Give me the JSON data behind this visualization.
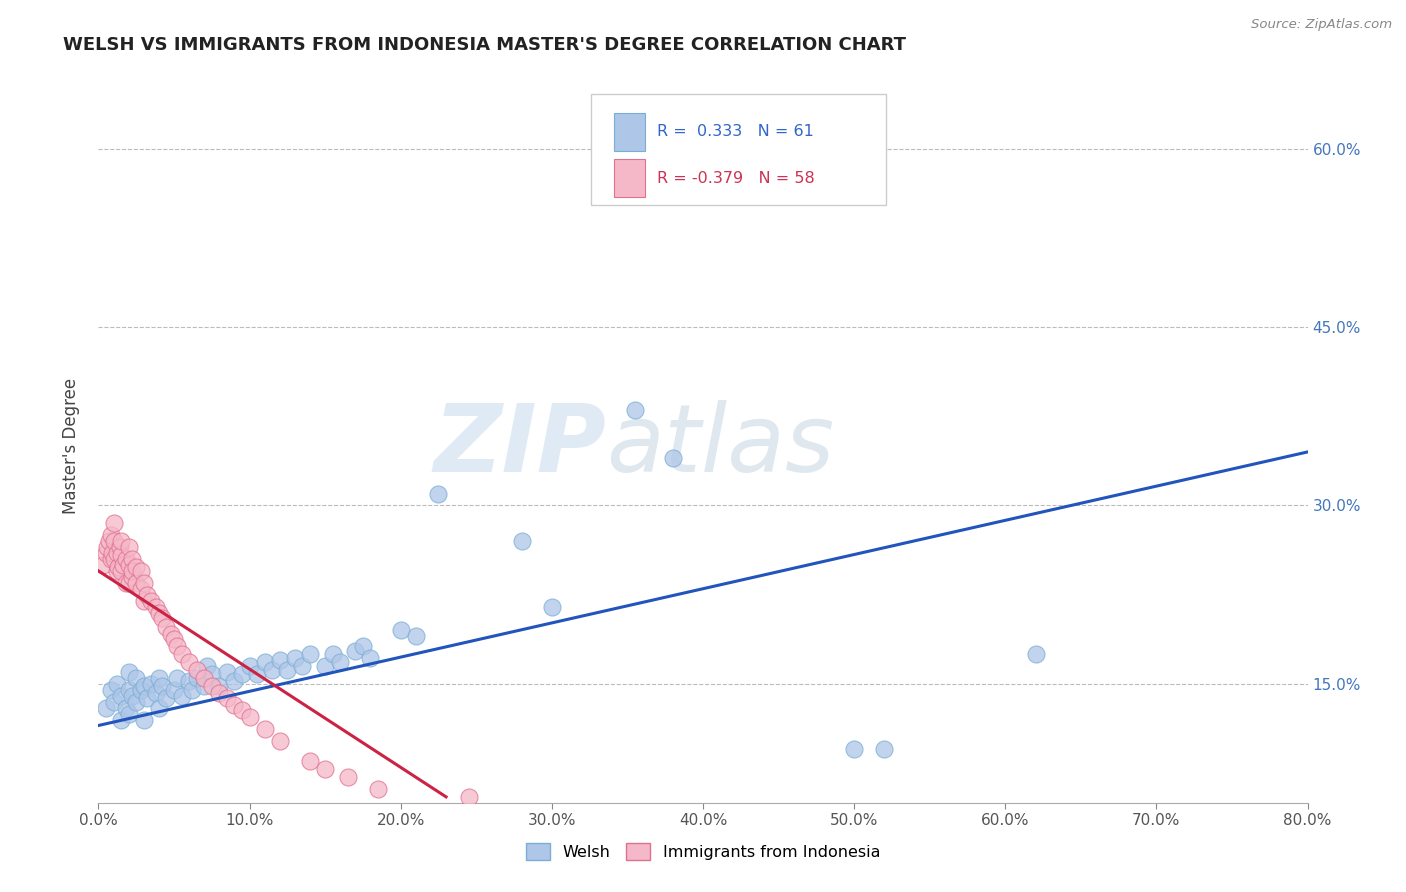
{
  "title": "WELSH VS IMMIGRANTS FROM INDONESIA MASTER'S DEGREE CORRELATION CHART",
  "source": "Source: ZipAtlas.com",
  "ylabel": "Master's Degree",
  "xlim": [
    0.0,
    0.8
  ],
  "ylim": [
    0.05,
    0.65
  ],
  "xticks": [
    0.0,
    0.1,
    0.2,
    0.3,
    0.4,
    0.5,
    0.6,
    0.7,
    0.8
  ],
  "xticklabels": [
    "0.0%",
    "10.0%",
    "20.0%",
    "30.0%",
    "40.0%",
    "50.0%",
    "60.0%",
    "70.0%",
    "80.0%"
  ],
  "yticks_right": [
    0.15,
    0.3,
    0.45,
    0.6
  ],
  "yticklabels_right": [
    "15.0%",
    "30.0%",
    "45.0%",
    "60.0%"
  ],
  "welsh_color": "#aec6e8",
  "welsh_edge": "#7aaed4",
  "indo_color": "#f5b8c8",
  "indo_edge": "#e07090",
  "welsh_line_color": "#2255bb",
  "indo_line_color": "#cc2244",
  "R_welsh": 0.333,
  "N_welsh": 61,
  "R_indo": -0.379,
  "N_indo": 58,
  "watermark_zip": "ZIP",
  "watermark_atlas": "atlas",
  "background_color": "#ffffff",
  "grid_color": "#bbbbbb",
  "welsh_line_x": [
    0.0,
    0.8
  ],
  "welsh_line_y": [
    0.115,
    0.345
  ],
  "indo_line_x": [
    0.0,
    0.23
  ],
  "indo_line_y": [
    0.245,
    0.055
  ],
  "welsh_scatter_x": [
    0.005,
    0.008,
    0.01,
    0.012,
    0.015,
    0.015,
    0.018,
    0.02,
    0.02,
    0.02,
    0.022,
    0.025,
    0.025,
    0.028,
    0.03,
    0.03,
    0.032,
    0.035,
    0.038,
    0.04,
    0.04,
    0.042,
    0.045,
    0.05,
    0.052,
    0.055,
    0.06,
    0.062,
    0.065,
    0.07,
    0.072,
    0.075,
    0.08,
    0.085,
    0.09,
    0.095,
    0.1,
    0.105,
    0.11,
    0.115,
    0.12,
    0.125,
    0.13,
    0.135,
    0.14,
    0.15,
    0.155,
    0.16,
    0.17,
    0.175,
    0.18,
    0.2,
    0.21,
    0.225,
    0.28,
    0.3,
    0.355,
    0.38,
    0.5,
    0.52,
    0.62
  ],
  "welsh_scatter_y": [
    0.13,
    0.145,
    0.135,
    0.15,
    0.12,
    0.14,
    0.13,
    0.125,
    0.145,
    0.16,
    0.14,
    0.135,
    0.155,
    0.145,
    0.12,
    0.148,
    0.138,
    0.15,
    0.142,
    0.13,
    0.155,
    0.148,
    0.138,
    0.145,
    0.155,
    0.14,
    0.152,
    0.145,
    0.155,
    0.148,
    0.165,
    0.158,
    0.148,
    0.16,
    0.152,
    0.158,
    0.165,
    0.158,
    0.168,
    0.162,
    0.17,
    0.162,
    0.172,
    0.165,
    0.175,
    0.165,
    0.175,
    0.168,
    0.178,
    0.182,
    0.172,
    0.195,
    0.19,
    0.31,
    0.27,
    0.215,
    0.38,
    0.34,
    0.095,
    0.095,
    0.175
  ],
  "indo_scatter_x": [
    0.003,
    0.005,
    0.006,
    0.007,
    0.008,
    0.008,
    0.009,
    0.01,
    0.01,
    0.01,
    0.012,
    0.012,
    0.013,
    0.014,
    0.015,
    0.015,
    0.015,
    0.016,
    0.018,
    0.018,
    0.02,
    0.02,
    0.02,
    0.022,
    0.022,
    0.022,
    0.025,
    0.025,
    0.028,
    0.028,
    0.03,
    0.03,
    0.032,
    0.035,
    0.038,
    0.04,
    0.042,
    0.045,
    0.048,
    0.05,
    0.052,
    0.055,
    0.06,
    0.065,
    0.07,
    0.075,
    0.08,
    0.085,
    0.09,
    0.095,
    0.1,
    0.11,
    0.12,
    0.14,
    0.15,
    0.165,
    0.185,
    0.245
  ],
  "indo_scatter_y": [
    0.25,
    0.26,
    0.265,
    0.27,
    0.255,
    0.275,
    0.26,
    0.255,
    0.27,
    0.285,
    0.245,
    0.26,
    0.248,
    0.265,
    0.245,
    0.258,
    0.27,
    0.25,
    0.235,
    0.255,
    0.235,
    0.25,
    0.265,
    0.24,
    0.255,
    0.245,
    0.235,
    0.248,
    0.23,
    0.245,
    0.22,
    0.235,
    0.225,
    0.22,
    0.215,
    0.21,
    0.205,
    0.198,
    0.192,
    0.188,
    0.182,
    0.175,
    0.168,
    0.162,
    0.155,
    0.148,
    0.142,
    0.138,
    0.132,
    0.128,
    0.122,
    0.112,
    0.102,
    0.085,
    0.078,
    0.072,
    0.062,
    0.055
  ]
}
